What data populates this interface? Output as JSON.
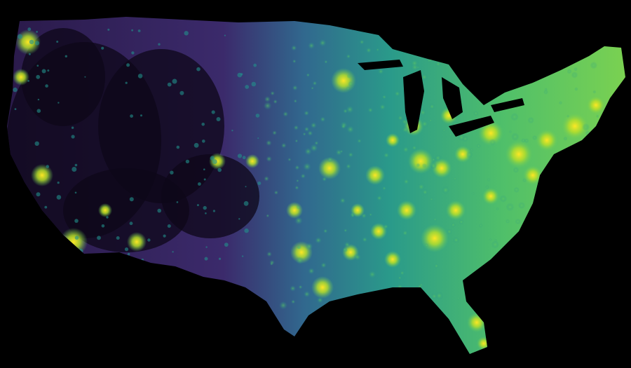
{
  "map": {
    "region": "contiguous-united-states",
    "style": "population-density-heatmap",
    "colormap": "viridis",
    "colors": {
      "background": "#000000",
      "low": "#440154",
      "low_mid": "#3b528b",
      "mid": "#21918c",
      "high_mid": "#5ec962",
      "high": "#fde725"
    }
  }
}
